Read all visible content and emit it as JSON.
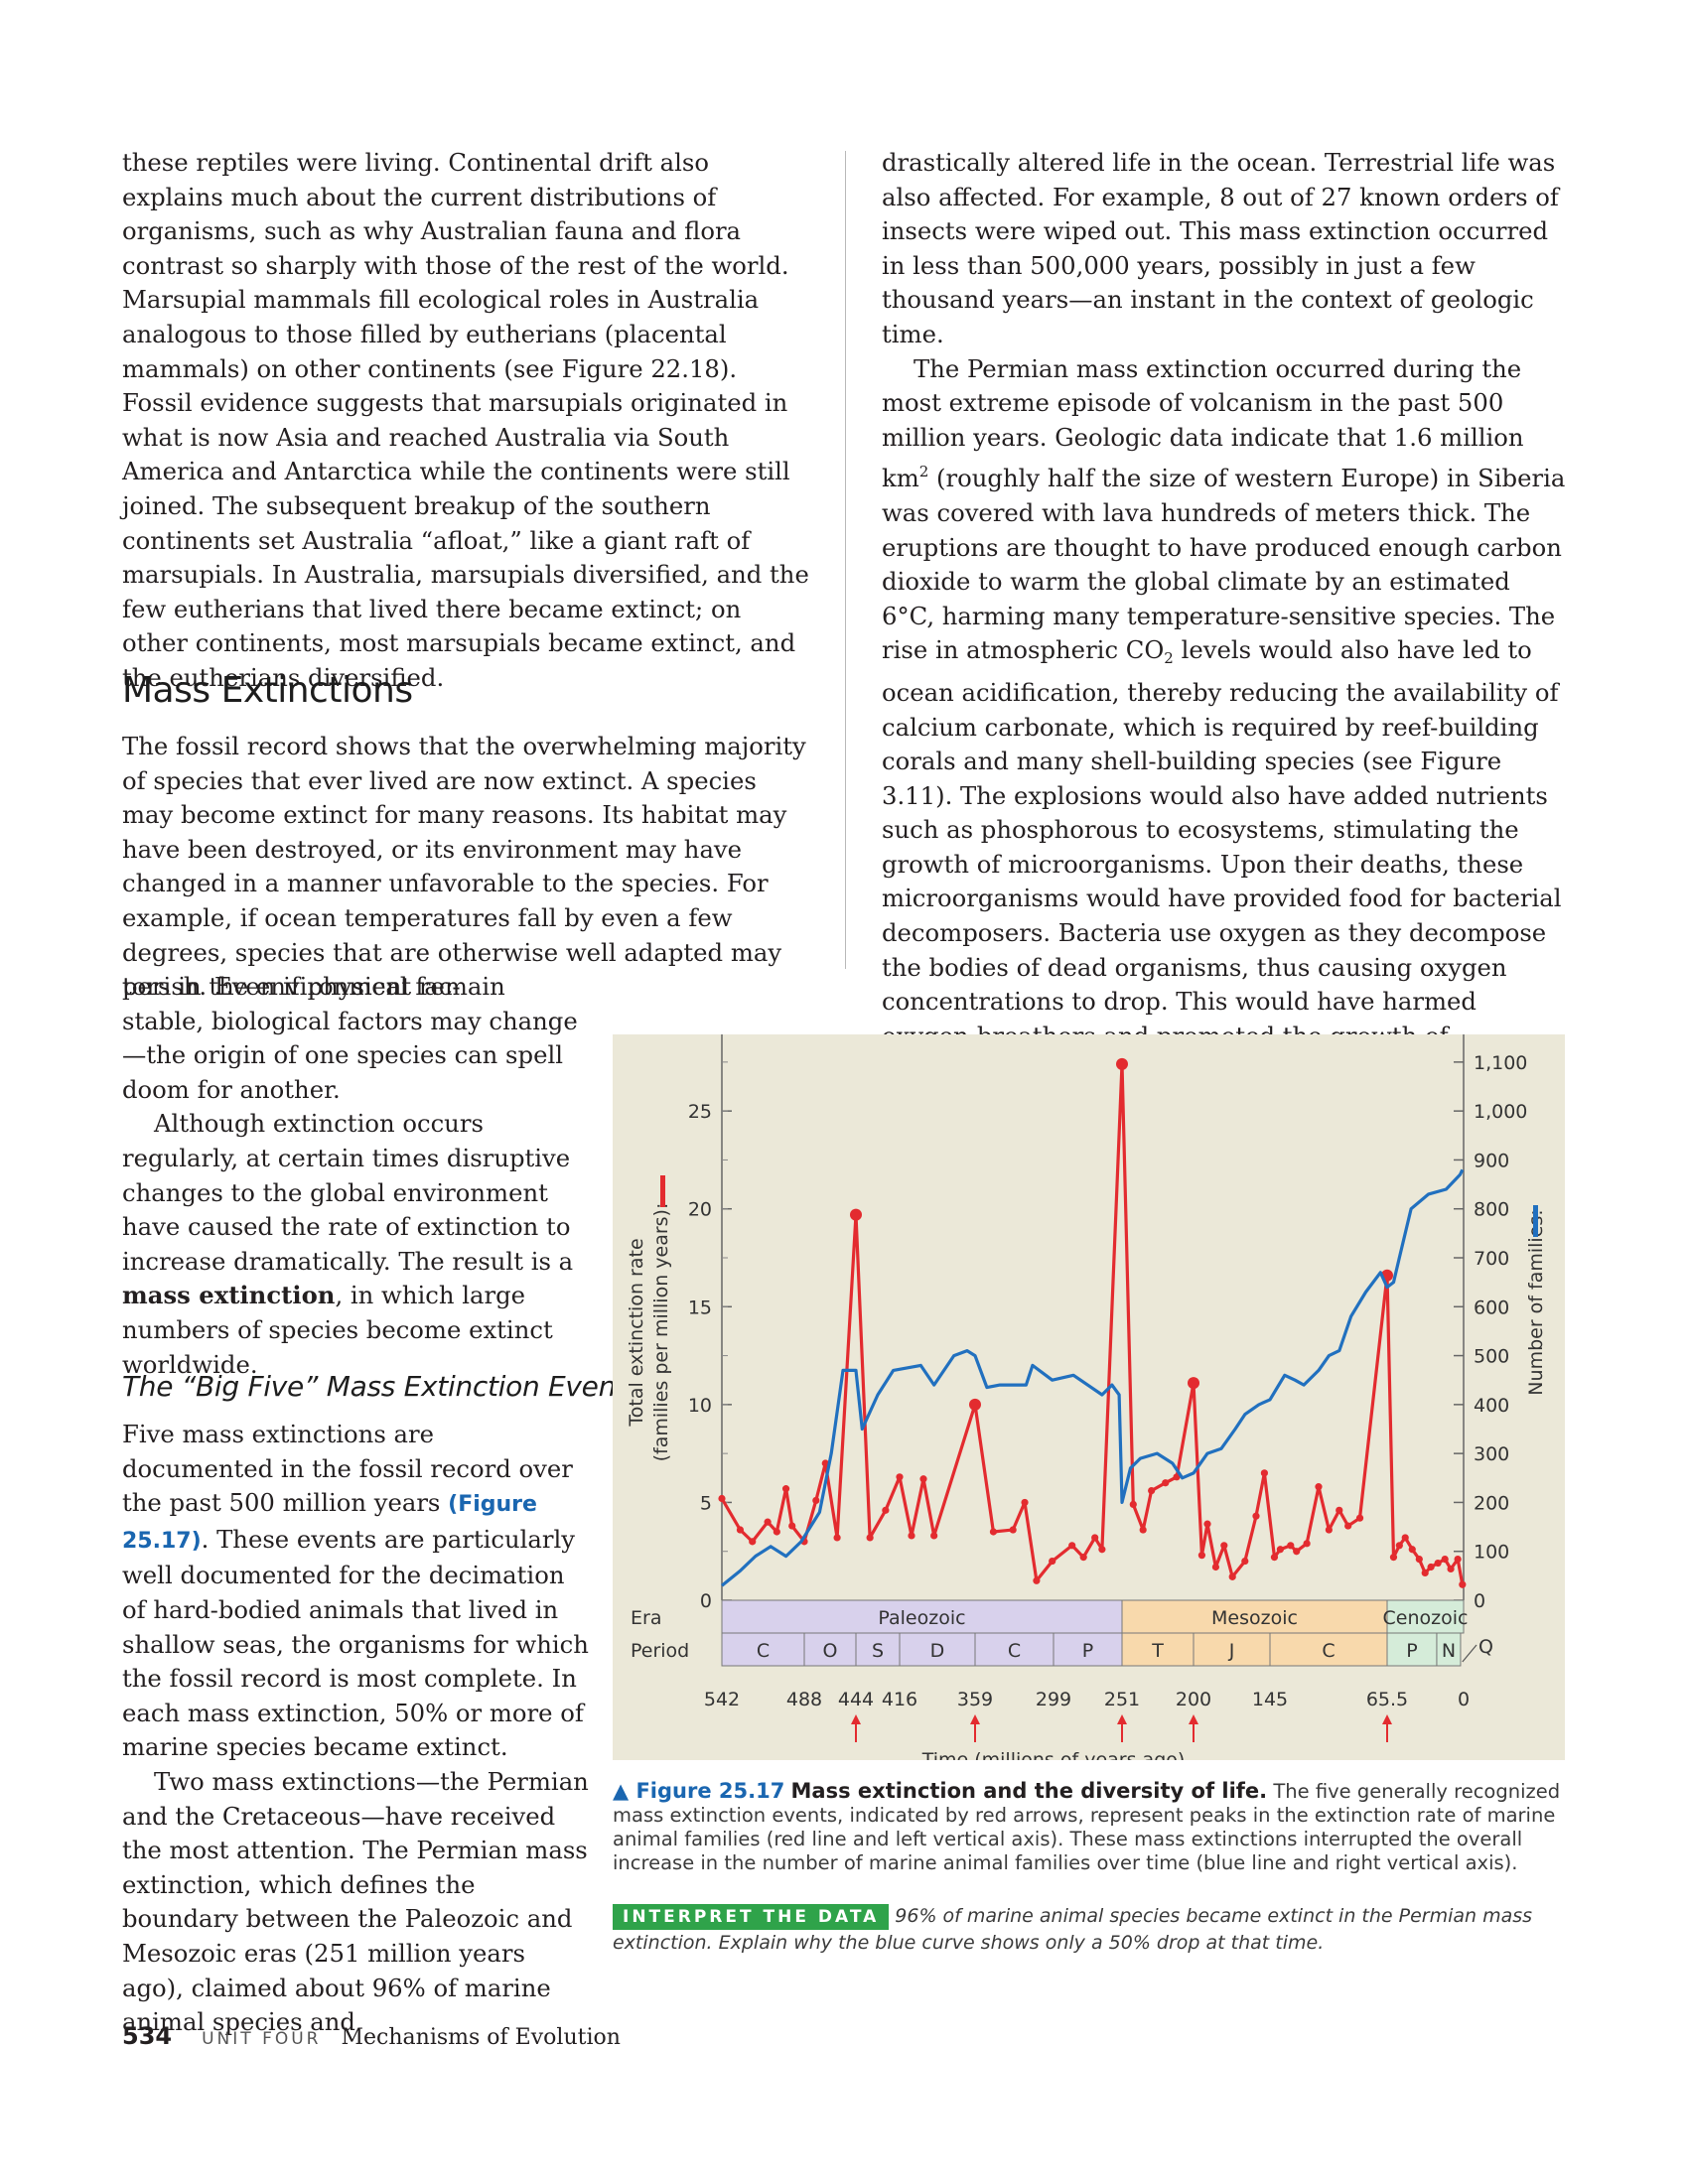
{
  "left_top_paragraph": "these reptiles were living. Continental drift also explains much about the current distributions of organisms, such as why Australian fauna and flora contrast so sharply with those of the rest of the world. Marsupial mammals fill ecological roles in Australia analogous to those filled by eutherians (placental mammals) on other continents (see Figure 22.18). Fossil evidence suggests that marsupials originated in what is now Asia and reached Australia via South America and Antarctica while the continents were still joined. The subsequent breakup of the southern continents set Australia “afloat,” like a giant raft of marsupials. In Australia, marsupials diversified, and the few eutherians that lived there became extinct; on other continents, most marsupials became extinct, and the eutherians diversified.",
  "heading_mass_extinctions": "Mass Extinctions",
  "mass_para_wide": "The fossil record shows that the overwhelming majority of species that ever lived are now extinct. A species may become extinct for many reasons. Its habitat may have been destroyed, or its environment may have changed in a manner unfavorable to the species. For example, if ocean temperatures fall by even a few degrees, species that are otherwise well adapted may perish. Even if physical fac-",
  "mass_para_narrow": "tors in the environment remain stable, biological factors may change—the origin of one species can spell doom for another.",
  "extinction_para_before": "Although extinction occurs regularly, at certain times disruptive changes to the global environment have caused the rate of extinction to increase dramatically. The result is a ",
  "extinction_term": "mass extinction",
  "extinction_para_after": ", in which large numbers of species become extinct worldwide.",
  "heading_big_five": "The “Big Five” Mass Extinction Events",
  "bigfive_before": "Five mass extinctions are documented in the fossil record over the past 500 million years ",
  "bigfive_figref": "(Figure 25.17)",
  "bigfive_after": ". These events are particularly well documented for the decimation of hard-bodied animals that lived in shallow seas, the organisms for which the fossil record is most complete. In each mass extinction, 50% or more of marine species became extinct.",
  "two_mass_para": "Two mass extinctions—the Permian and the Cretaceous—have received the most attention. The Permian mass extinction, which defines the boundary between the Paleozoic and Mesozoic eras (251 million years ago), claimed about 96% of marine animal species and",
  "right_para1": "drastically altered life in the ocean. Terrestrial life was also affected. For example, 8 out of 27 known orders of insects were wiped out. This mass extinction occurred in less than 500,000 years, possibly in just a few thousand years—an instant in the context of geologic time.",
  "right_para2_a": "The Permian mass extinction occurred during the most extreme episode of volcanism in the past 500 million years. Geologic data indicate that 1.6 million km",
  "right_para2_sup": "2",
  "right_para2_b": " (roughly half the size of western Europe) in Siberia was covered with lava hundreds of meters thick. The eruptions are thought to have produced enough carbon dioxide to warm the global climate by an estimated 6°C, harming many temperature-sensitive species. The rise in atmospheric CO",
  "right_para2_sub": "2",
  "right_para2_c": " levels would also have led to ocean acidification, thereby reducing the availability of calcium carbonate, which is required by reef-building corals and many shell-building species (see Figure 3.11). The explosions would also have added nutrients such as phosphorous to ecosystems, stimulating the growth of microorganisms. Upon their deaths, these microorganisms would have provided food for bacterial decomposers. Bacteria use oxygen as they decompose the bodies of dead organisms, thus causing oxygen concentrations to drop. This would have harmed oxygen-breathers and promoted the growth of anaerobic bacteria that emit a poisonous metabolic by-product,",
  "caption": {
    "label": "▲ Figure 25.17",
    "title": "Mass extinction and the diversity of life.",
    "text": "The five generally recognized mass extinction events, indicated by red arrows, represent peaks in the extinction rate of marine animal families (red line and left vertical axis). These mass extinctions interrupted the overall increase in the number of marine animal families over time (blue line and right vertical axis)."
  },
  "interpret": {
    "tag": "INTERPRET THE DATA",
    "text": "96% of marine animal species became extinct in the Permian mass extinction. Explain why the blue curve shows only a 50% drop at that time."
  },
  "footer": {
    "page_number": "534",
    "unit": "UNIT FOUR",
    "title": "Mechanisms of Evolution"
  },
  "chart_data": {
    "type": "line",
    "xlabel": "Time (millions of years ago)",
    "ylabel_left_line1": "Total extinction rate",
    "ylabel_left_line2": "(families per million years):",
    "ylabel_right": "Number of families:",
    "x_ticks": [
      "542",
      "488",
      "444",
      "416",
      "359",
      "299",
      "251",
      "200",
      "145",
      "65.5",
      "0"
    ],
    "y_left_ticks": [
      "0",
      "5",
      "10",
      "15",
      "20",
      "25"
    ],
    "y_right_ticks": [
      "0",
      "100",
      "200",
      "300",
      "400",
      "500",
      "600",
      "700",
      "800",
      "900",
      "1,000",
      "1,100"
    ],
    "ylim_left": [
      0,
      28
    ],
    "ylim_right": [
      0,
      1120
    ],
    "era_label": "Era",
    "period_label": "Period",
    "eras": [
      {
        "name": "Paleozoic",
        "from": 542,
        "to": 251,
        "color": "#d8d1ec"
      },
      {
        "name": "Mesozoic",
        "from": 251,
        "to": 65.5,
        "color": "#f8d9ac"
      },
      {
        "name": "Cenozoic",
        "from": 65.5,
        "to": 0,
        "color": "#d5ecd9"
      }
    ],
    "periods": [
      {
        "name": "C",
        "from": 542,
        "to": 488
      },
      {
        "name": "O",
        "from": 488,
        "to": 444
      },
      {
        "name": "S",
        "from": 444,
        "to": 416
      },
      {
        "name": "D",
        "from": 416,
        "to": 359
      },
      {
        "name": "C",
        "from": 359,
        "to": 299
      },
      {
        "name": "P",
        "from": 299,
        "to": 251
      },
      {
        "name": "T",
        "from": 251,
        "to": 200
      },
      {
        "name": "J",
        "from": 200,
        "to": 145
      },
      {
        "name": "C",
        "from": 145,
        "to": 65.5
      },
      {
        "name": "P",
        "from": 65.5,
        "to": 23
      },
      {
        "name": "N",
        "from": 23,
        "to": 2.6
      }
    ],
    "q_label": "Q",
    "arrows_at": [
      444,
      359,
      251,
      200,
      65.5
    ],
    "series": [
      {
        "name": "Total extinction rate",
        "axis": "left",
        "color": "#e32b2f",
        "points": [
          [
            542,
            5.2
          ],
          [
            530,
            3.6
          ],
          [
            522,
            3.0
          ],
          [
            512,
            4.0
          ],
          [
            506,
            3.5
          ],
          [
            500,
            5.7
          ],
          [
            496,
            3.8
          ],
          [
            488,
            3.0
          ],
          [
            478,
            5.1
          ],
          [
            470,
            7.0
          ],
          [
            460,
            3.2
          ],
          [
            444,
            19.7
          ],
          [
            435,
            3.2
          ],
          [
            425,
            4.6
          ],
          [
            416,
            6.3
          ],
          [
            407,
            3.3
          ],
          [
            398,
            6.2
          ],
          [
            390,
            3.3
          ],
          [
            359,
            10.0
          ],
          [
            345,
            3.5
          ],
          [
            330,
            3.6
          ],
          [
            321,
            5.0
          ],
          [
            312,
            1.0
          ],
          [
            300,
            2.0
          ],
          [
            286,
            2.8
          ],
          [
            278,
            2.2
          ],
          [
            270,
            3.2
          ],
          [
            265,
            2.6
          ],
          [
            251,
            27.4
          ],
          [
            243,
            4.9
          ],
          [
            236,
            3.6
          ],
          [
            230,
            5.6
          ],
          [
            220,
            6.0
          ],
          [
            212,
            6.3
          ],
          [
            200,
            11.1
          ],
          [
            194,
            2.3
          ],
          [
            190,
            3.9
          ],
          [
            184,
            1.7
          ],
          [
            178,
            2.8
          ],
          [
            172,
            1.2
          ],
          [
            163,
            2.0
          ],
          [
            155,
            4.3
          ],
          [
            149,
            6.5
          ],
          [
            142,
            2.2
          ],
          [
            138,
            2.6
          ],
          [
            131,
            2.8
          ],
          [
            127,
            2.5
          ],
          [
            120,
            2.9
          ],
          [
            112,
            5.8
          ],
          [
            105,
            3.6
          ],
          [
            98,
            4.6
          ],
          [
            92,
            3.8
          ],
          [
            84,
            4.2
          ],
          [
            65.5,
            16.6
          ],
          [
            60,
            2.2
          ],
          [
            55,
            2.8
          ],
          [
            50,
            3.2
          ],
          [
            44,
            2.6
          ],
          [
            38,
            2.1
          ],
          [
            33,
            1.4
          ],
          [
            28,
            1.7
          ],
          [
            22,
            1.9
          ],
          [
            16,
            2.1
          ],
          [
            11,
            1.6
          ],
          [
            5,
            2.1
          ],
          [
            1,
            0.8
          ]
        ]
      },
      {
        "name": "Number of families",
        "axis": "right",
        "color": "#2170bf",
        "points": [
          [
            542,
            30
          ],
          [
            530,
            60
          ],
          [
            520,
            90
          ],
          [
            510,
            110
          ],
          [
            500,
            90
          ],
          [
            490,
            120
          ],
          [
            475,
            180
          ],
          [
            465,
            300
          ],
          [
            455,
            470
          ],
          [
            444,
            470
          ],
          [
            440,
            350
          ],
          [
            430,
            420
          ],
          [
            420,
            470
          ],
          [
            400,
            480
          ],
          [
            390,
            440
          ],
          [
            375,
            500
          ],
          [
            365,
            510
          ],
          [
            359,
            500
          ],
          [
            350,
            435
          ],
          [
            340,
            440
          ],
          [
            320,
            440
          ],
          [
            315,
            480
          ],
          [
            300,
            450
          ],
          [
            285,
            460
          ],
          [
            265,
            420
          ],
          [
            258,
            440
          ],
          [
            253,
            420
          ],
          [
            251,
            200
          ],
          [
            245,
            270
          ],
          [
            238,
            290
          ],
          [
            226,
            300
          ],
          [
            215,
            280
          ],
          [
            208,
            250
          ],
          [
            200,
            260
          ],
          [
            190,
            300
          ],
          [
            180,
            310
          ],
          [
            170,
            350
          ],
          [
            163,
            380
          ],
          [
            153,
            400
          ],
          [
            145,
            410
          ],
          [
            135,
            460
          ],
          [
            128,
            450
          ],
          [
            122,
            440
          ],
          [
            112,
            470
          ],
          [
            105,
            500
          ],
          [
            98,
            510
          ],
          [
            90,
            580
          ],
          [
            80,
            630
          ],
          [
            70,
            670
          ],
          [
            65.5,
            640
          ],
          [
            60,
            650
          ],
          [
            55,
            700
          ],
          [
            45,
            800
          ],
          [
            30,
            830
          ],
          [
            15,
            840
          ],
          [
            3,
            870
          ],
          [
            1,
            880
          ]
        ]
      }
    ]
  }
}
